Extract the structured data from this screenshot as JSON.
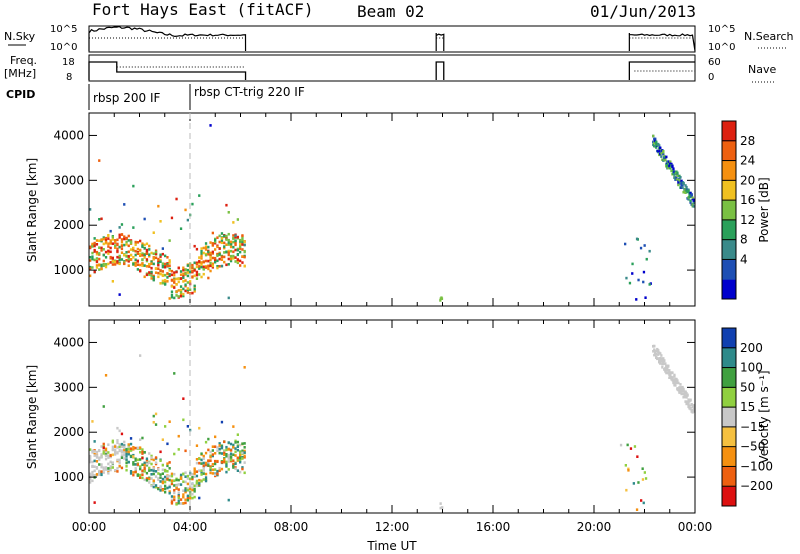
{
  "header": {
    "radar": "Fort Hays East (fitACF)",
    "beam": "Beam 02",
    "date": "01/Jun/2013"
  },
  "labels": {
    "nsky": "N.Sky",
    "nsearch": "N.Search",
    "freq_top": "Freq.",
    "freq_unit": "[MHz]",
    "nave": "Nave",
    "cpid": "CPID"
  },
  "cpid_segments": [
    {
      "name": "rbsp 200 IF",
      "start_hour": 0.0,
      "end_hour": 4.0
    },
    {
      "name": "rbsp CT-trig 220 IF",
      "start_hour": 4.0,
      "end_hour": 24.0
    }
  ],
  "noise_axis": {
    "left_ticks": [
      "10^5",
      "10^0"
    ],
    "right_ticks": [
      "10^5",
      "10^0"
    ]
  },
  "freq_axis": {
    "left_ticks": [
      "18",
      "8"
    ],
    "right_ticks": [
      "60",
      "0"
    ]
  },
  "chart_data": [
    {
      "type": "heatmap",
      "title": "Power",
      "xlabel": "",
      "ylabel": "Slant Range [km]",
      "xlim": [
        0,
        24
      ],
      "ylim": [
        200,
        4500
      ],
      "yticks": [
        1000,
        2000,
        3000,
        4000
      ],
      "colorbar": {
        "label": "Power [dB]",
        "ticks": [
          "28",
          "24",
          "20",
          "16",
          "12",
          "8",
          "4"
        ],
        "colors": [
          "#0000cc",
          "#1e4fb4",
          "#3a8a8a",
          "#2aa05a",
          "#7ac043",
          "#f0c020",
          "#f59010",
          "#ee6010",
          "#dd2010"
        ]
      },
      "regions": [
        {
          "x0": 0.0,
          "x1": 6.2,
          "r0": 750,
          "r1": 1650,
          "level": "high"
        },
        {
          "x0": 0.0,
          "x1": 6.2,
          "r0": 1300,
          "r1": 2500,
          "level": "scattered"
        },
        {
          "x0": 0.0,
          "x1": 6.2,
          "r0": 200,
          "r1": 4400,
          "level": "sparse"
        },
        {
          "x0": 13.8,
          "x1": 14.0,
          "r0": 300,
          "r1": 450,
          "level": "low"
        },
        {
          "x0": 21.0,
          "x1": 23.9,
          "r0": 2400,
          "r1": 4100,
          "level": "echo-arc"
        },
        {
          "x0": 21.0,
          "x1": 22.3,
          "r0": 300,
          "r1": 1800,
          "level": "sparse"
        }
      ]
    },
    {
      "type": "heatmap",
      "title": "Velocity",
      "xlabel": "Time UT",
      "ylabel": "Slant Range [km]",
      "xlim": [
        0,
        24
      ],
      "ylim": [
        200,
        4500
      ],
      "xticks": [
        "00:00",
        "04:00",
        "08:00",
        "12:00",
        "16:00",
        "20:00",
        "00:00"
      ],
      "yticks": [
        1000,
        2000,
        3000,
        4000
      ],
      "colorbar": {
        "label": "Velocity [m s⁻¹]",
        "ticks": [
          "200",
          "100",
          "50",
          "15",
          "−15",
          "−50",
          "−100",
          "−200"
        ],
        "colors": [
          "#dd1010",
          "#ee6010",
          "#f59010",
          "#f5c040",
          "#c8c8c8",
          "#90d040",
          "#40a040",
          "#2e8a8a",
          "#1040b0"
        ]
      },
      "regions": [
        {
          "x0": 0.0,
          "x1": 6.2,
          "r0": 750,
          "r1": 1650,
          "level": "mixed-orange-green"
        },
        {
          "x0": 0.0,
          "x1": 1.4,
          "r0": 600,
          "r1": 1900,
          "level": "ground-scatter-grey"
        },
        {
          "x0": 21.0,
          "x1": 23.9,
          "r0": 2400,
          "r1": 4100,
          "level": "ground-scatter-grey"
        }
      ]
    }
  ]
}
